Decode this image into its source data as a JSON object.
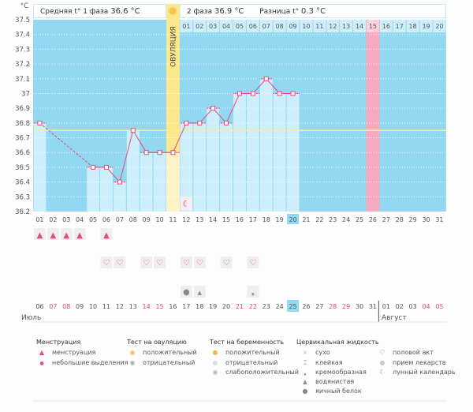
{
  "header": {
    "phase1_label": "Средняя t° 1 фаза",
    "phase1_value": "36.6 °C",
    "phase2_label": "2 фаза",
    "phase2_value": "36.9 °C",
    "diff_label": "Разница t°",
    "diff_value": "0.3 °C",
    "ovulation_label": "ОВУЛЯЦИЯ"
  },
  "colors": {
    "chart_bg": "#92d8f2",
    "bar_fill": "#cdeefb",
    "line": "#e8487a",
    "ovulation": "#fbe88c",
    "ovulation_light": "#fdf3c4",
    "menstruation_day": "#f7a9c0",
    "coverline": "#f3ee9a",
    "today": "#92d8f2",
    "weekend": "#e8487a"
  },
  "chart_data": {
    "type": "line",
    "title": "",
    "ylabel": "°C",
    "ylim": [
      36.2,
      37.5
    ],
    "yticks": [
      "37.5",
      "37.4",
      "37.3",
      "37.2",
      "37.1",
      "37",
      "36.9",
      "36.8",
      "36.7",
      "36.6",
      "36.5",
      "36.4",
      "36.3",
      "36.2"
    ],
    "coverline": 36.75,
    "cycle_days": [
      "01",
      "02",
      "03",
      "04",
      "05",
      "06",
      "07",
      "08",
      "09",
      "10",
      "11",
      "12",
      "13",
      "14",
      "15",
      "16",
      "17",
      "18",
      "19",
      "20",
      "21",
      "22",
      "23",
      "24",
      "25",
      "26",
      "27",
      "28",
      "29",
      "30",
      "31"
    ],
    "dpo_labels": [
      "01",
      "02",
      "03",
      "04",
      "05",
      "06",
      "07",
      "08",
      "09",
      "10",
      "11",
      "12",
      "13",
      "14",
      "15",
      "16",
      "17",
      "18",
      "19",
      "20"
    ],
    "dpo_highlight": "15",
    "ovulation_day": "11",
    "menstruation_highlight_day": "26",
    "today_cycle_day": "20",
    "series": [
      {
        "name": "temperature",
        "points": [
          {
            "day": "01",
            "value": 36.8
          },
          {
            "day": "05",
            "value": 36.5
          },
          {
            "day": "06",
            "value": 36.5
          },
          {
            "day": "07",
            "value": 36.4
          },
          {
            "day": "08",
            "value": 36.75
          },
          {
            "day": "09",
            "value": 36.6
          },
          {
            "day": "10",
            "value": 36.6
          },
          {
            "day": "11",
            "value": 36.6
          },
          {
            "day": "12",
            "value": 36.8
          },
          {
            "day": "13",
            "value": 36.8
          },
          {
            "day": "14",
            "value": 36.9
          },
          {
            "day": "15",
            "value": 36.8
          },
          {
            "day": "16",
            "value": 37.0
          },
          {
            "day": "17",
            "value": 37.0
          },
          {
            "day": "18",
            "value": 37.1
          },
          {
            "day": "19",
            "value": 37.0
          },
          {
            "day": "20",
            "value": 37.0
          }
        ],
        "dashed_gap": [
          "01",
          "05"
        ]
      }
    ]
  },
  "dates": {
    "labels": [
      "06",
      "07",
      "08",
      "09",
      "10",
      "11",
      "12",
      "13",
      "14",
      "15",
      "16",
      "17",
      "18",
      "19",
      "20",
      "21",
      "22",
      "23",
      "24",
      "25",
      "26",
      "27",
      "28",
      "29",
      "30",
      "31",
      "01",
      "02",
      "03",
      "04",
      "05"
    ],
    "weekend": [
      "07",
      "08",
      "14",
      "15",
      "21",
      "22",
      "28",
      "29",
      "04",
      "05"
    ],
    "weekend_idx": [
      1,
      2,
      8,
      9,
      15,
      16,
      22,
      23,
      29,
      30
    ],
    "today": "25",
    "month1": "Июль",
    "month2": "Август"
  },
  "markers": {
    "menstruation": [
      "01",
      "02",
      "03",
      "04",
      "06"
    ],
    "sex": [
      "06",
      "07",
      "09",
      "10",
      "12",
      "13",
      "15",
      "17"
    ],
    "moon": [
      "12"
    ],
    "fluid": [
      {
        "day": "12",
        "type": "egg-white"
      },
      {
        "day": "13",
        "type": "watery"
      },
      {
        "day": "17",
        "type": "creamy"
      }
    ]
  },
  "legend": {
    "menstruation": {
      "title": "Менструация",
      "items": [
        "менструация",
        "небольшие выделения"
      ]
    },
    "ovulation_test": {
      "title": "Тест на овуляцию",
      "items": [
        "положительный",
        "отрицательный"
      ]
    },
    "pregnancy_test": {
      "title": "Тест на беременность",
      "items": [
        "положительный",
        "отрицательный",
        "слабоположительный"
      ]
    },
    "cervical_fluid": {
      "title": "Цервикальная жидкость",
      "items": [
        "сухо",
        "клейкая",
        "кремообразная",
        "водянистая",
        "яичный белок"
      ]
    },
    "other": {
      "items": [
        "половой акт",
        "прием лекарств",
        "лунный календарь"
      ]
    }
  }
}
